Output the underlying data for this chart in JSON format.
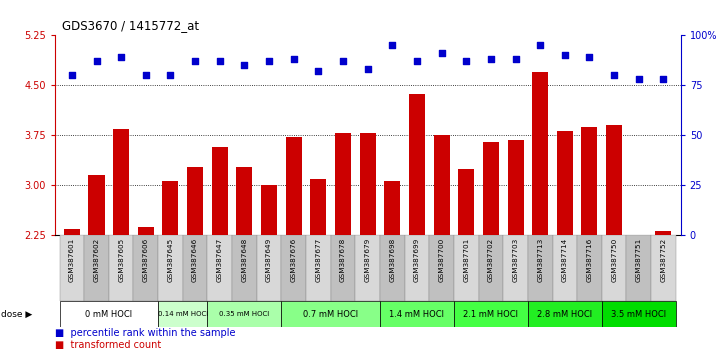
{
  "title": "GDS3670 / 1415772_at",
  "samples": [
    "GSM387601",
    "GSM387602",
    "GSM387605",
    "GSM387606",
    "GSM387645",
    "GSM387646",
    "GSM387647",
    "GSM387648",
    "GSM387649",
    "GSM387676",
    "GSM387677",
    "GSM387678",
    "GSM387679",
    "GSM387698",
    "GSM387699",
    "GSM387700",
    "GSM387701",
    "GSM387702",
    "GSM387703",
    "GSM387713",
    "GSM387714",
    "GSM387716",
    "GSM387750",
    "GSM387751",
    "GSM387752"
  ],
  "bar_values": [
    2.35,
    3.15,
    3.85,
    2.38,
    3.07,
    3.28,
    3.58,
    3.27,
    3.01,
    3.72,
    3.1,
    3.78,
    3.78,
    3.07,
    4.37,
    3.75,
    3.25,
    3.65,
    3.68,
    4.7,
    3.82,
    3.87,
    3.9,
    2.25,
    2.32
  ],
  "percentile_values": [
    80,
    87,
    89,
    80,
    80,
    87,
    87,
    85,
    87,
    88,
    82,
    87,
    83,
    95,
    87,
    91,
    87,
    88,
    88,
    95,
    90,
    89,
    80,
    78,
    78
  ],
  "ylim_left": [
    2.25,
    5.25
  ],
  "ylim_right": [
    0,
    100
  ],
  "yticks_left": [
    2.25,
    3.0,
    3.75,
    4.5,
    5.25
  ],
  "yticks_right": [
    0,
    25,
    50,
    75,
    100
  ],
  "ytick_labels_right": [
    "0",
    "25",
    "50",
    "75",
    "100%"
  ],
  "grid_lines": [
    3.0,
    3.75,
    4.5
  ],
  "bar_color": "#CC0000",
  "dot_color": "#0000CC",
  "dose_groups": [
    {
      "label": "0 mM HOCl",
      "start": 0,
      "end": 4,
      "color": "#ffffff"
    },
    {
      "label": "0.14 mM HOCl",
      "start": 4,
      "end": 6,
      "color": "#ccffcc"
    },
    {
      "label": "0.35 mM HOCl",
      "start": 6,
      "end": 9,
      "color": "#aaffaa"
    },
    {
      "label": "0.7 mM HOCl",
      "start": 9,
      "end": 13,
      "color": "#88ff88"
    },
    {
      "label": "1.4 mM HOCl",
      "start": 13,
      "end": 16,
      "color": "#66ff66"
    },
    {
      "label": "2.1 mM HOCl",
      "start": 16,
      "end": 19,
      "color": "#44ff44"
    },
    {
      "label": "2.8 mM HOCl",
      "start": 19,
      "end": 22,
      "color": "#22ee22"
    },
    {
      "label": "3.5 mM HOCl",
      "start": 22,
      "end": 25,
      "color": "#00dd00"
    }
  ],
  "legend_bar_label": "transformed count",
  "legend_dot_label": "percentile rank within the sample",
  "bg_color": "#ffffff",
  "axis_color_left": "#CC0000",
  "axis_color_right": "#0000CC",
  "fig_width": 7.28,
  "fig_height": 3.54,
  "dpi": 100
}
